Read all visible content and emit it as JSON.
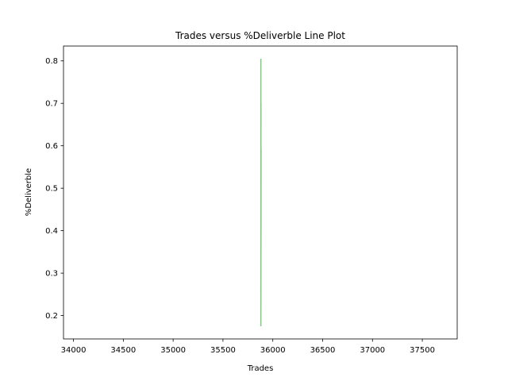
{
  "chart_data": {
    "type": "line",
    "title": "Trades versus %Deliverble Line Plot",
    "xlabel": "Trades",
    "ylabel": "%Deliverble",
    "xlim": [
      33900,
      37850
    ],
    "ylim": [
      0.145,
      0.835
    ],
    "x_ticks": [
      34000,
      34500,
      35000,
      35500,
      36000,
      36500,
      37000,
      37500
    ],
    "y_ticks": [
      0.2,
      0.3,
      0.4,
      0.5,
      0.6,
      0.7,
      0.8
    ],
    "x_tick_labels": [
      "34000",
      "34500",
      "35000",
      "35500",
      "36000",
      "36500",
      "37000",
      "37500"
    ],
    "y_tick_labels": [
      "0.2",
      "0.3",
      "0.4",
      "0.5",
      "0.6",
      "0.7",
      "0.8"
    ],
    "grid": false,
    "legend": "none",
    "series": [
      {
        "color": "#7fc97f",
        "points": [
          {
            "x": 35880,
            "y": 0.805
          },
          {
            "x": 35880,
            "y": 0.18
          },
          {
            "x": 35882,
            "y": 0.59
          },
          {
            "x": 35880,
            "y": 0.32
          },
          {
            "x": 35881,
            "y": 0.7
          },
          {
            "x": 35880,
            "y": 0.26
          },
          {
            "x": 35881,
            "y": 0.48
          },
          {
            "x": 35880,
            "y": 0.175
          }
        ]
      }
    ]
  }
}
